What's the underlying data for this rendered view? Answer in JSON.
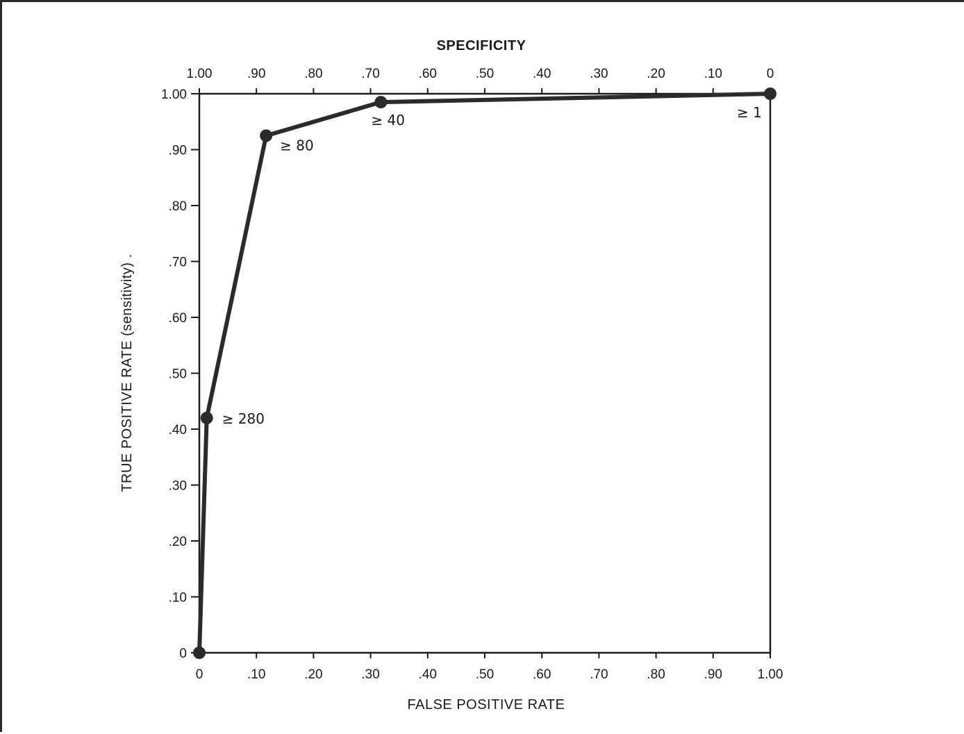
{
  "chart_data": {
    "type": "line",
    "title": "",
    "xlabel": "FALSE POSITIVE RATE",
    "ylabel": "TRUE POSITIVE RATE (sensitivity) .",
    "x2label": "SPECIFICITY",
    "xlim": [
      0,
      1
    ],
    "ylim": [
      0,
      1
    ],
    "x_ticks": [
      {
        "value": 0,
        "label": "0"
      },
      {
        "value": 0.1,
        "label": ".10"
      },
      {
        "value": 0.2,
        "label": ".20"
      },
      {
        "value": 0.3,
        "label": ".30"
      },
      {
        "value": 0.4,
        "label": ".40"
      },
      {
        "value": 0.5,
        "label": ".50"
      },
      {
        "value": 0.6,
        "label": ".60"
      },
      {
        "value": 0.7,
        "label": ".70"
      },
      {
        "value": 0.8,
        "label": ".80"
      },
      {
        "value": 0.9,
        "label": ".90"
      },
      {
        "value": 1.0,
        "label": "1.00"
      }
    ],
    "x2_ticks": [
      {
        "value": 1.0,
        "label": "1.00"
      },
      {
        "value": 0.9,
        "label": ".90"
      },
      {
        "value": 0.8,
        "label": ".80"
      },
      {
        "value": 0.7,
        "label": ".70"
      },
      {
        "value": 0.6,
        "label": ".60"
      },
      {
        "value": 0.5,
        "label": ".50"
      },
      {
        "value": 0.4,
        "label": ".40"
      },
      {
        "value": 0.3,
        "label": ".30"
      },
      {
        "value": 0.2,
        "label": ".20"
      },
      {
        "value": 0.1,
        "label": ".10"
      },
      {
        "value": 0,
        "label": "0"
      }
    ],
    "y_ticks": [
      {
        "value": 0,
        "label": "0"
      },
      {
        "value": 0.1,
        "label": ".10"
      },
      {
        "value": 0.2,
        "label": ".20"
      },
      {
        "value": 0.3,
        "label": ".30"
      },
      {
        "value": 0.4,
        "label": ".40"
      },
      {
        "value": 0.5,
        "label": ".50"
      },
      {
        "value": 0.6,
        "label": ".60"
      },
      {
        "value": 0.7,
        "label": ".70"
      },
      {
        "value": 0.8,
        "label": ".80"
      },
      {
        "value": 0.9,
        "label": ".90"
      },
      {
        "value": 1.0,
        "label": "1.00"
      }
    ],
    "grid": false,
    "series": [
      {
        "points": [
          {
            "x": 0.0,
            "y": 0.0,
            "label": ""
          },
          {
            "x": 0.013,
            "y": 0.42,
            "label": "≥ 280"
          },
          {
            "x": 0.117,
            "y": 0.925,
            "label": "≥ 80"
          },
          {
            "x": 0.318,
            "y": 0.985,
            "label": "≥ 40"
          },
          {
            "x": 1.0,
            "y": 1.0,
            "label": "≥ 1"
          }
        ]
      }
    ],
    "colors": {
      "line": "#2b2b2b",
      "axis": "#1a1a1a"
    }
  }
}
